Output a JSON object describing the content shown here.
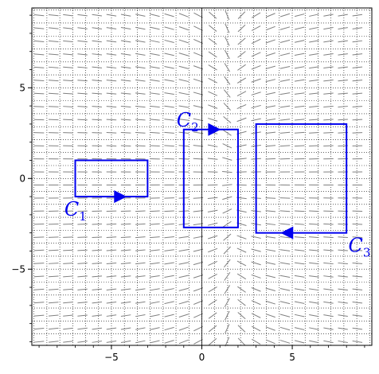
{
  "chart_data": {
    "type": "vector-field",
    "xlim": [
      -9.4,
      9.4
    ],
    "ylim": [
      -9.2,
      9.4
    ],
    "xticks": [
      -5,
      0,
      5
    ],
    "yticks": [
      -5,
      0,
      5
    ],
    "xtick_labels": [
      "−5",
      "0",
      "5"
    ],
    "ytick_labels": [
      "−5",
      "0",
      "5"
    ],
    "minor_grid_step": 0.714,
    "grid": "dotted",
    "field_color": "#808080",
    "curve_color": "#0000ee",
    "field": "slope field of y' = y/x rotated (lines tangent to direction field, near-horizontal away from x≈1.5)",
    "curves": [
      {
        "label": "C",
        "subscript": "1",
        "rect": {
          "x0": -7,
          "x1": -3,
          "y0": -1,
          "y1": 1
        },
        "arrow": {
          "at": [
            -4.5,
            -1
          ],
          "direction": "right"
        },
        "label_pos": [
          -7.6,
          -1.6
        ]
      },
      {
        "label": "C",
        "subscript": "2",
        "rect": {
          "x0": -1,
          "x1": 2,
          "y0": -2.7,
          "y1": 2.7
        },
        "arrow": {
          "at": [
            0.7,
            2.7
          ],
          "direction": "right"
        },
        "label_pos": [
          -1.4,
          3.3
        ]
      },
      {
        "label": "C",
        "subscript": "3",
        "rect": {
          "x0": 3,
          "x1": 8,
          "y0": -3,
          "y1": 3
        },
        "arrow": {
          "at": [
            4.7,
            -3
          ],
          "direction": "left"
        },
        "label_pos": [
          8.1,
          -3.6
        ]
      }
    ]
  }
}
